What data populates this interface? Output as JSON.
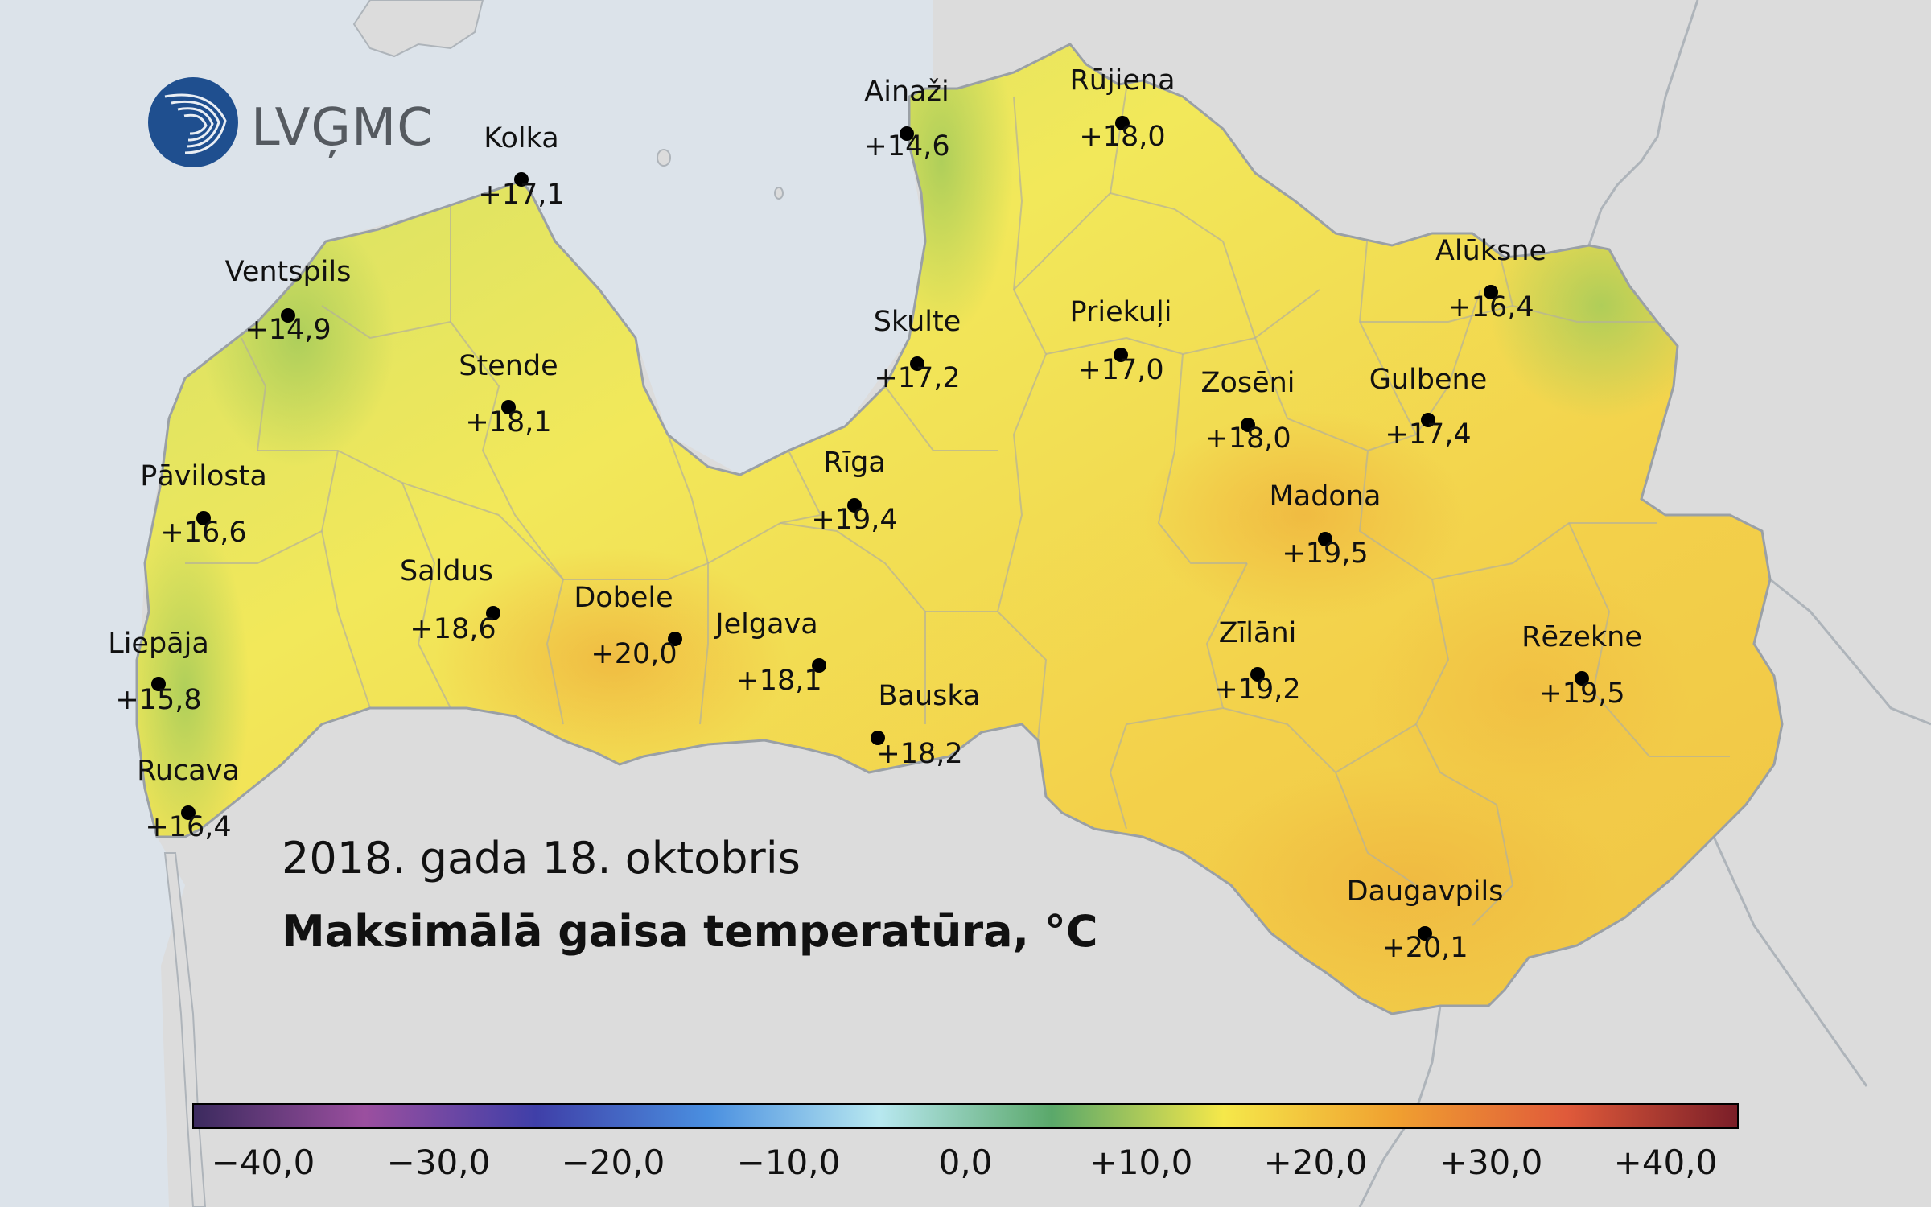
{
  "logo": {
    "text": "LVĢMC",
    "icon": "globe-wave-icon"
  },
  "date": "2018. gada 18. oktobris",
  "title": "Maksimālā gaisa temperatūra, °C",
  "colors": {
    "sea": "#dce3ea",
    "land_outside": "#dcdcdc",
    "border": "#aeb4ba",
    "logo_blue": "#1f4f8f"
  },
  "stations": [
    {
      "name": "Kolka",
      "value": "+17,1"
    },
    {
      "name": "Ainaži",
      "value": "+14,6"
    },
    {
      "name": "Rūjiena",
      "value": "+18,0"
    },
    {
      "name": "Ventspils",
      "value": "+14,9"
    },
    {
      "name": "Stende",
      "value": "+18,1"
    },
    {
      "name": "Skulte",
      "value": "+17,2"
    },
    {
      "name": "Priekuļi",
      "value": "+17,0"
    },
    {
      "name": "Alūksne",
      "value": "+16,4"
    },
    {
      "name": "Zosēni",
      "value": "+18,0"
    },
    {
      "name": "Gulbene",
      "value": "+17,4"
    },
    {
      "name": "Pāvilosta",
      "value": "+16,6"
    },
    {
      "name": "Rīga",
      "value": "+19,4"
    },
    {
      "name": "Madona",
      "value": "+19,5"
    },
    {
      "name": "Saldus",
      "value": "+18,6"
    },
    {
      "name": "Dobele",
      "value": "+20,0"
    },
    {
      "name": "Jelgava",
      "value": "+18,1"
    },
    {
      "name": "Liepāja",
      "value": "+15,8"
    },
    {
      "name": "Zīlāni",
      "value": "+19,2"
    },
    {
      "name": "Rēzekne",
      "value": "+19,5"
    },
    {
      "name": "Bauska",
      "value": "+18,2"
    },
    {
      "name": "Rucava",
      "value": "+16,4"
    },
    {
      "name": "Daugavpils",
      "value": "+20,1"
    }
  ],
  "legend": {
    "ticks": [
      "−40,0",
      "−30,0",
      "−20,0",
      "−10,0",
      "0,0",
      "+10,0",
      "+20,0",
      "+30,0",
      "+40,0"
    ],
    "stops": [
      "#3b2a5e",
      "#9b4f9f",
      "#3f3fa8",
      "#4a8fe0",
      "#b8e8f0",
      "#5aa86a",
      "#f5e84a",
      "#f0a030",
      "#e05a3a",
      "#7a1e28"
    ]
  }
}
